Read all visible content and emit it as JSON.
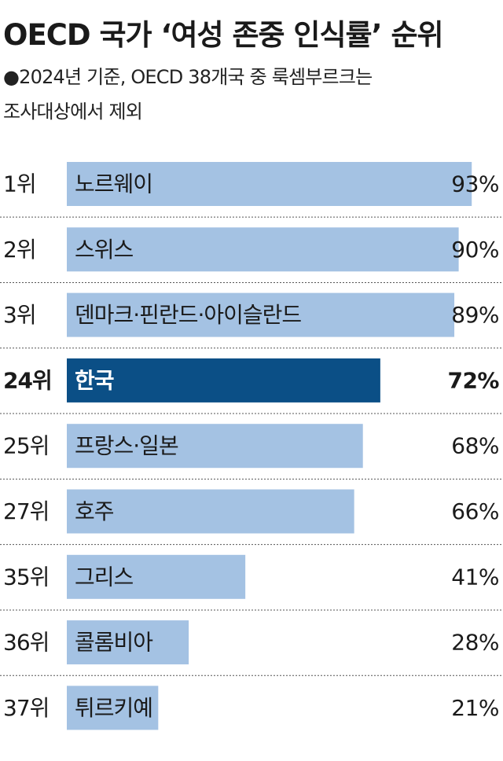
{
  "title": "OECD 국가 ‘여성 존중 인식률’ 순위",
  "subtitle_lines": [
    "●2024년 기준, OECD 38개국 중 룩셈부르크는",
    "조사대상에서 제외"
  ],
  "chart_data": {
    "type": "bar",
    "orientation": "horizontal",
    "ranks": [
      "1위",
      "2위",
      "3위",
      "24위",
      "25위",
      "27위",
      "35위",
      "36위",
      "37위"
    ],
    "categories": [
      "노르웨이",
      "스위스",
      "덴마크·핀란드·아이슬란드",
      "한국",
      "프랑스·일본",
      "호주",
      "그리스",
      "콜롬비아",
      "튀르키예"
    ],
    "values": [
      93,
      90,
      89,
      72,
      68,
      66,
      41,
      28,
      21
    ],
    "value_labels": [
      "93%",
      "90%",
      "89%",
      "72%",
      "68%",
      "66%",
      "41%",
      "28%",
      "21%"
    ],
    "highlight": "한국",
    "xlim": [
      0,
      100
    ],
    "colors": {
      "bar": "#a4c2e3",
      "highlight_bar": "#0b4f86",
      "divider": "#555555",
      "text": "#1a1a1a",
      "highlight_text": "#ffffff"
    }
  }
}
